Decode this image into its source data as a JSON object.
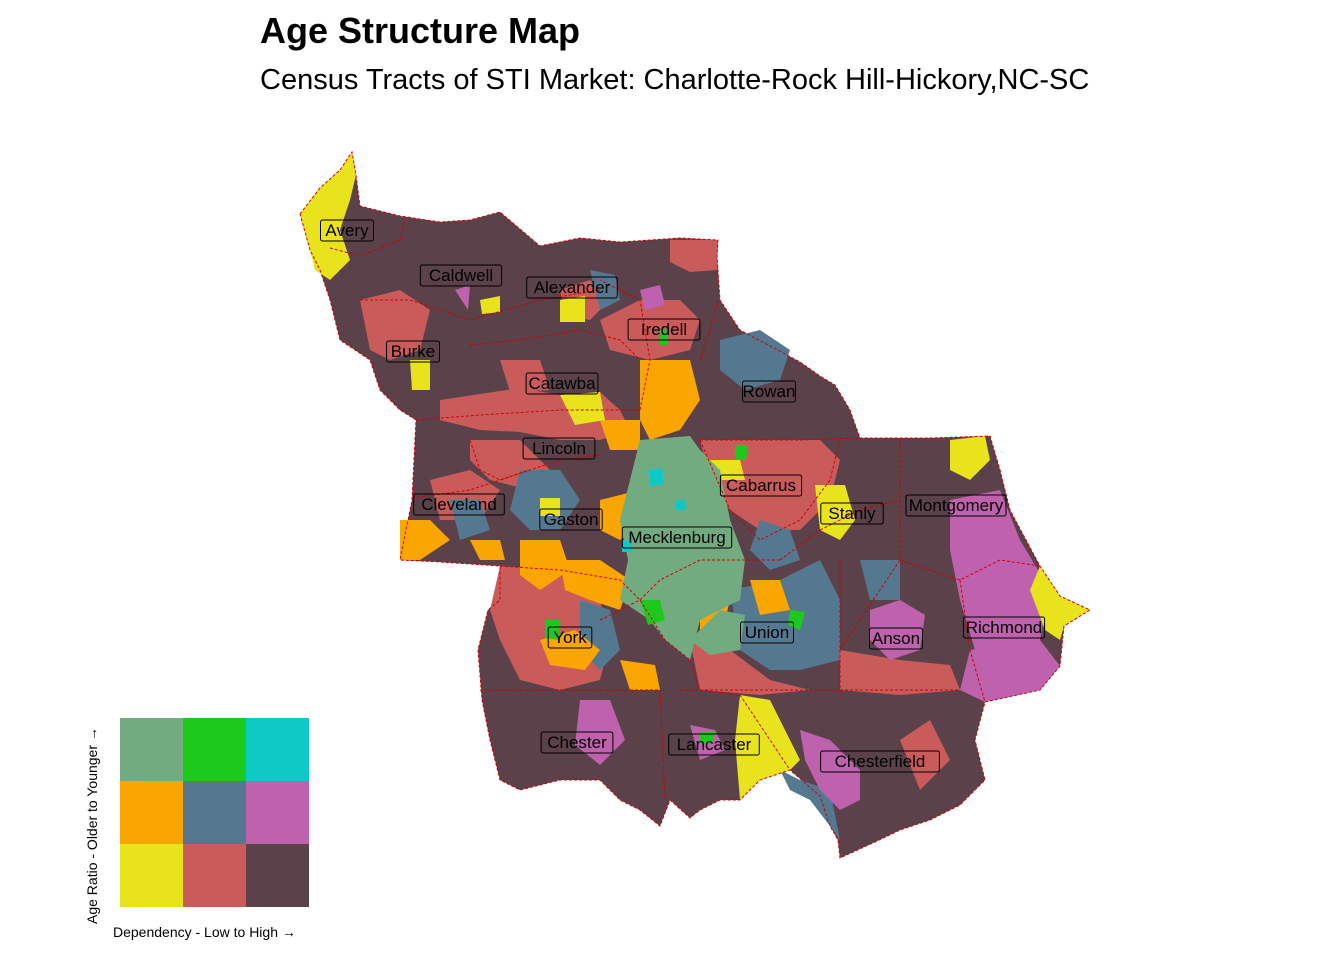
{
  "title": "Age Structure Map",
  "subtitle": "Census Tracts of STI Market: Charlotte-Rock Hill-Hickory,NC-SC",
  "colors": {
    "dark": "#5a414a",
    "red": "#c95b5b",
    "slate": "#557891",
    "yellow": "#e8e31c",
    "orange": "#f9a602",
    "sage": "#73ab80",
    "green": "#1ec91e",
    "cyan": "#0ec9c5",
    "magenta": "#bf62ae",
    "boundary": "#d40000"
  },
  "legend": {
    "x_label": "Dependency - Low to High →",
    "y_label": "Age Ratio - Older to Younger →",
    "grid": [
      [
        "#73ab80",
        "#1ec91e",
        "#0ec9c5"
      ],
      [
        "#f9a602",
        "#557891",
        "#bf62ae"
      ],
      [
        "#e8e31c",
        "#c95b5b",
        "#5a414a"
      ]
    ]
  },
  "counties": [
    {
      "name": "Avery"
    },
    {
      "name": "Caldwell"
    },
    {
      "name": "Alexander"
    },
    {
      "name": "Iredell"
    },
    {
      "name": "Burke"
    },
    {
      "name": "Catawba"
    },
    {
      "name": "Rowan"
    },
    {
      "name": "Lincoln"
    },
    {
      "name": "Cabarrus"
    },
    {
      "name": "Cleveland"
    },
    {
      "name": "Gaston"
    },
    {
      "name": "Stanly"
    },
    {
      "name": "Montgomery"
    },
    {
      "name": "Mecklenburg"
    },
    {
      "name": "York"
    },
    {
      "name": "Union"
    },
    {
      "name": "Anson"
    },
    {
      "name": "Richmond"
    },
    {
      "name": "Chester"
    },
    {
      "name": "Lancaster"
    },
    {
      "name": "Chesterfield"
    }
  ]
}
